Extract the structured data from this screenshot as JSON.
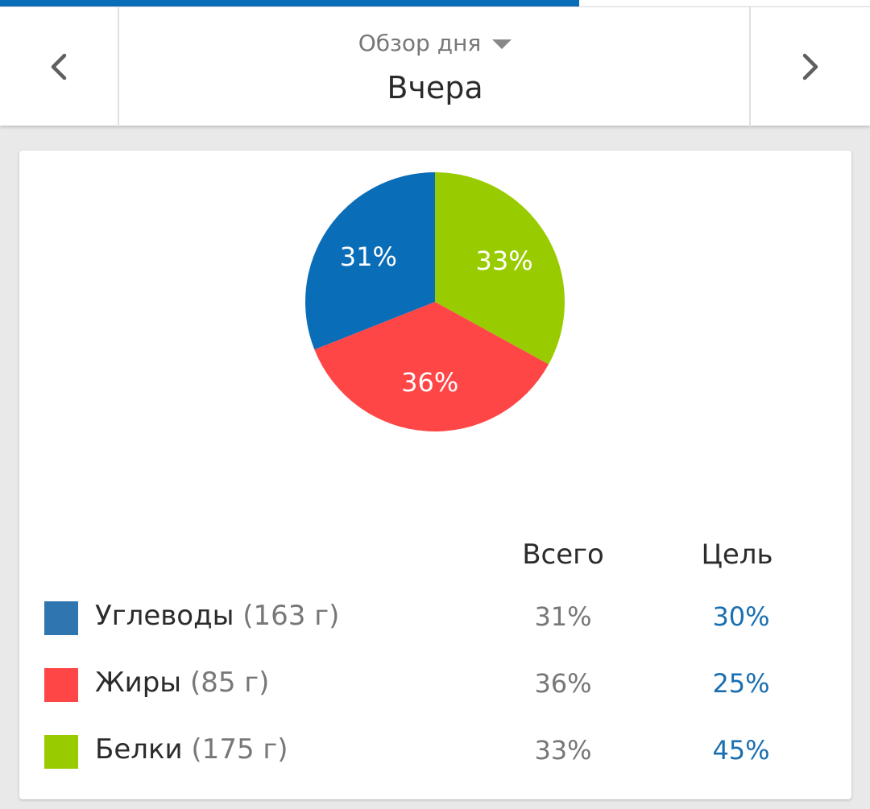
{
  "progress": {
    "value": 0.666,
    "fill_color": "#0a6db8"
  },
  "header": {
    "subtitle": "Обзор дня",
    "title": "Вчера",
    "prev_icon": "chevron-left-icon",
    "next_icon": "chevron-right-icon",
    "caret_icon": "caret-down-icon"
  },
  "chart_data": {
    "type": "pie",
    "slices": [
      {
        "label": "Белки",
        "value": 33,
        "display": "33%",
        "color": "#99cc00"
      },
      {
        "label": "Жиры",
        "value": 36,
        "display": "36%",
        "color": "#ff4646"
      },
      {
        "label": "Углеводы",
        "value": 31,
        "display": "31%",
        "color": "#0a6db8"
      }
    ],
    "start_angle_deg": 0,
    "direction": "clockwise",
    "legend": "below"
  },
  "table": {
    "col_total": "Всего",
    "col_goal": "Цель",
    "rows": [
      {
        "name": "Углеводы",
        "amount": "(163 г)",
        "total": "31%",
        "goal": "30%",
        "color": "#2f75b0"
      },
      {
        "name": "Жиры",
        "amount": "(85 г)",
        "total": "36%",
        "goal": "25%",
        "color": "#ff4646"
      },
      {
        "name": "Белки",
        "amount": "(175 г)",
        "total": "33%",
        "goal": "45%",
        "color": "#99cc00"
      }
    ]
  }
}
